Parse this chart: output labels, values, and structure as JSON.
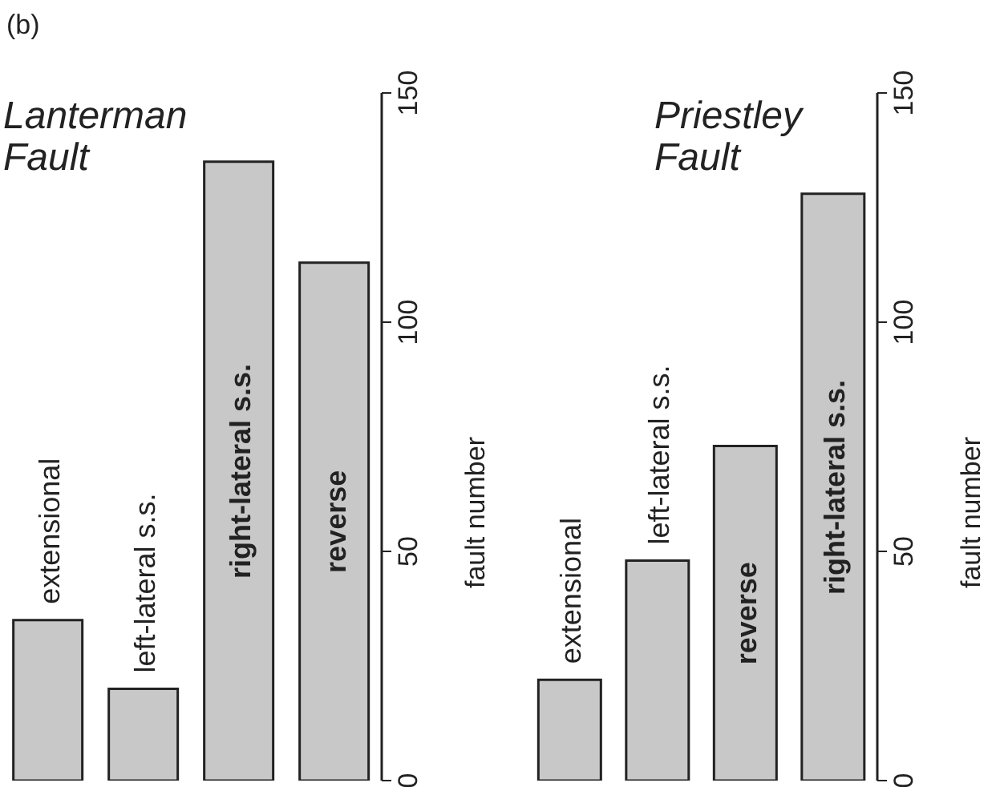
{
  "chart_data": [
    {
      "type": "bar",
      "title": "Lanterman Fault",
      "annotations": [
        "(b)"
      ],
      "categories": [
        "extensional",
        "left-lateral s.s.",
        "right-lateral s.s.",
        "reverse"
      ],
      "values": [
        35,
        20,
        135,
        113
      ],
      "color": "#c8c8c8",
      "ylabel": "fault number",
      "ylim": [
        0,
        150
      ],
      "yticks": [
        0,
        50,
        100,
        150
      ]
    },
    {
      "type": "bar",
      "title": "Priestley Fault",
      "categories": [
        "extensional",
        "left-lateral s.s.",
        "reverse",
        "right-lateral s.s."
      ],
      "values": [
        22,
        48,
        73,
        128
      ],
      "color": "#c8c8c8",
      "ylabel": "fault number",
      "ylim": [
        0,
        150
      ],
      "yticks": [
        0,
        50,
        100,
        150
      ]
    }
  ]
}
